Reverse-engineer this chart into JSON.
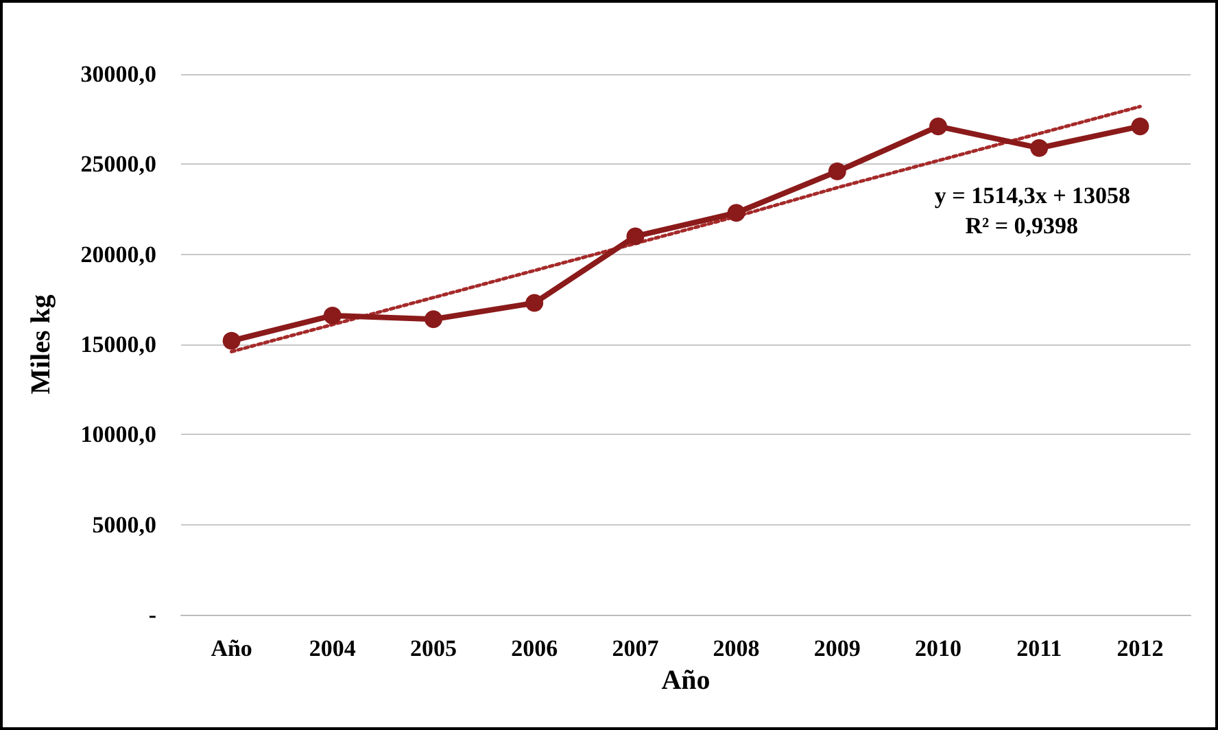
{
  "chart_data": {
    "type": "line",
    "xlabel": "Año",
    "ylabel": "Miles kg",
    "categories": [
      "Año",
      "2004",
      "2005",
      "2006",
      "2007",
      "2008",
      "2009",
      "2010",
      "2011",
      "2012"
    ],
    "series": [
      {
        "color": "#8b1a1a",
        "values": [
          15200,
          16600,
          16400,
          17300,
          21000,
          22300,
          24600,
          27100,
          25900,
          27100
        ],
        "marker": "circle",
        "line_style": "solid"
      },
      {
        "type": "line",
        "color": "#a52a2a",
        "values": [
          14600,
          16100,
          17600,
          19100,
          20600,
          22100,
          23700,
          25200,
          26700,
          28200
        ],
        "marker": "none",
        "line_style": "dotted"
      }
    ],
    "ylim": [
      0,
      30000
    ],
    "yticks": [
      {
        "value": 0,
        "label": "-"
      },
      {
        "value": 5000,
        "label": "5000,0"
      },
      {
        "value": 10000,
        "label": "10000,0"
      },
      {
        "value": 15000,
        "label": "15000,0"
      },
      {
        "value": 20000,
        "label": "20000,0"
      },
      {
        "value": 25000,
        "label": "25000,0"
      },
      {
        "value": 30000,
        "label": "30000,0"
      }
    ],
    "grid": "y",
    "annotations": [
      "y = 1514,3x + 13058",
      "R² = 0,9398"
    ]
  }
}
